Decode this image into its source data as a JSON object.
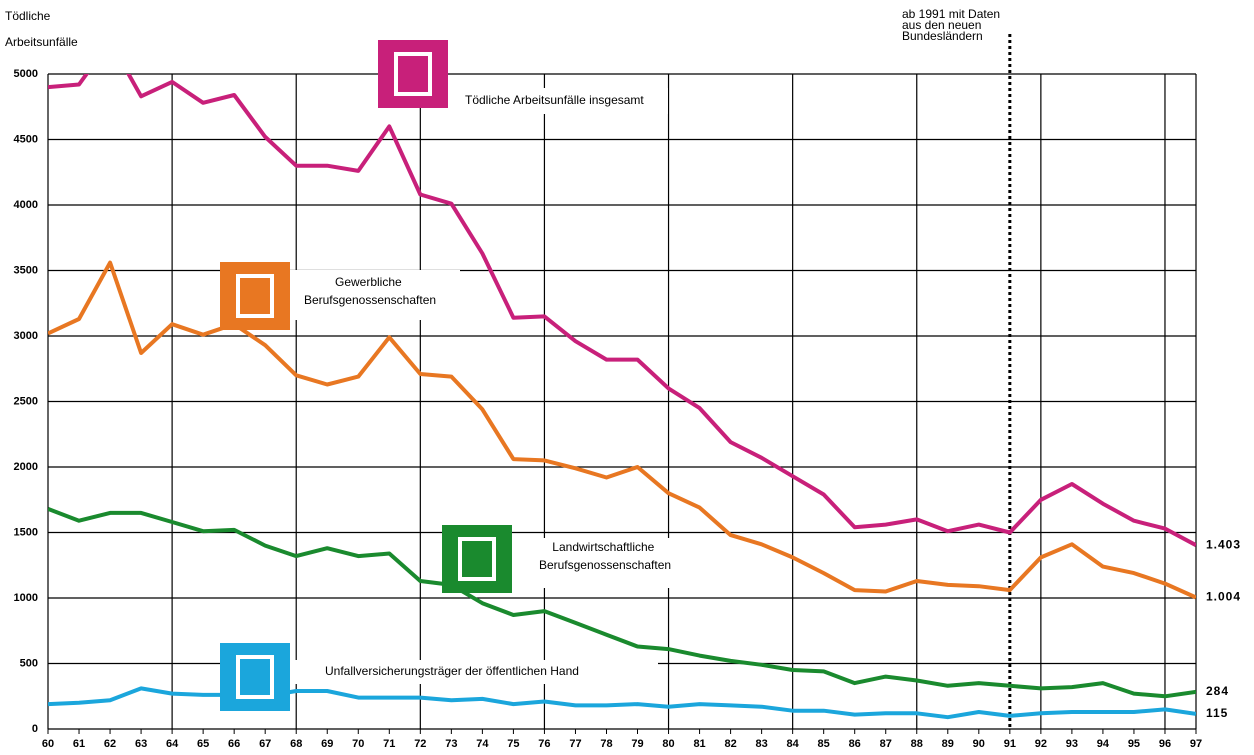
{
  "chart_data": {
    "type": "line",
    "title": "Tödliche Arbeitsunfälle",
    "categories": [
      "60",
      "61",
      "62",
      "63",
      "64",
      "65",
      "66",
      "67",
      "68",
      "69",
      "70",
      "71",
      "72",
      "73",
      "74",
      "75",
      "76",
      "77",
      "78",
      "79",
      "80",
      "81",
      "82",
      "83",
      "84",
      "85",
      "86",
      "87",
      "88",
      "89",
      "90",
      "91",
      "92",
      "93",
      "94",
      "95",
      "96",
      "97"
    ],
    "series": [
      {
        "name": "Tödliche Arbeitsunfälle insgesamt",
        "color": "#c8207a",
        "values": [
          4900,
          4920,
          5250,
          4830,
          4940,
          4780,
          4840,
          4520,
          4300,
          4300,
          4260,
          4600,
          4080,
          4010,
          3630,
          3140,
          3150,
          2960,
          2820,
          2820,
          2600,
          2450,
          2190,
          2070,
          1930,
          1790,
          1540,
          1560,
          1600,
          1510,
          1560,
          1500,
          1750,
          1870,
          1720,
          1590,
          1530,
          1403
        ],
        "value_labels": [
          null,
          null,
          null,
          null,
          null,
          null,
          null,
          null,
          null,
          null,
          null,
          null,
          null,
          null,
          null,
          null,
          null,
          null,
          null,
          null,
          null,
          null,
          null,
          null,
          null,
          null,
          null,
          null,
          null,
          null,
          null,
          null,
          null,
          null,
          null,
          null,
          null,
          "1.403"
        ]
      },
      {
        "name": "Gewerbliche Berufsgenossenschaften",
        "color": "#e87722",
        "values": [
          3020,
          3130,
          3560,
          2870,
          3090,
          3010,
          3090,
          2930,
          2700,
          2630,
          2690,
          2990,
          2710,
          2690,
          2440,
          2060,
          2050,
          1990,
          1920,
          2000,
          1800,
          1690,
          1480,
          1410,
          1310,
          1190,
          1060,
          1050,
          1130,
          1100,
          1090,
          1060,
          1310,
          1410,
          1240,
          1190,
          1110,
          1004
        ],
        "value_labels": [
          null,
          null,
          null,
          null,
          null,
          null,
          null,
          null,
          null,
          null,
          null,
          null,
          null,
          null,
          null,
          null,
          null,
          null,
          null,
          null,
          null,
          null,
          null,
          null,
          null,
          null,
          null,
          null,
          null,
          null,
          null,
          null,
          null,
          null,
          null,
          null,
          null,
          "1.004"
        ]
      },
      {
        "name": "Landwirtschaftliche Berufsgenossenschaften",
        "color": "#1a8a2e",
        "values": [
          1680,
          1590,
          1650,
          1650,
          1580,
          1510,
          1520,
          1400,
          1320,
          1380,
          1320,
          1340,
          1130,
          1100,
          960,
          870,
          900,
          810,
          720,
          630,
          610,
          560,
          520,
          490,
          450,
          440,
          350,
          400,
          370,
          330,
          350,
          330,
          310,
          320,
          350,
          270,
          250,
          284
        ],
        "value_labels": [
          null,
          null,
          null,
          null,
          null,
          null,
          null,
          null,
          null,
          null,
          null,
          null,
          null,
          null,
          null,
          null,
          null,
          null,
          null,
          null,
          null,
          null,
          null,
          null,
          null,
          null,
          null,
          null,
          null,
          null,
          null,
          null,
          null,
          null,
          null,
          null,
          null,
          "284"
        ]
      },
      {
        "name": "Unfallversicherungsträger der öffentlichen Hand",
        "color": "#1ba6dc",
        "values": [
          190,
          200,
          220,
          310,
          270,
          260,
          260,
          250,
          290,
          290,
          240,
          240,
          240,
          220,
          230,
          190,
          210,
          180,
          180,
          190,
          170,
          190,
          180,
          170,
          140,
          140,
          110,
          120,
          120,
          90,
          130,
          100,
          120,
          130,
          130,
          130,
          150,
          115
        ],
        "value_labels": [
          null,
          null,
          null,
          null,
          null,
          null,
          null,
          null,
          null,
          null,
          null,
          null,
          null,
          null,
          null,
          null,
          null,
          null,
          null,
          null,
          null,
          null,
          null,
          null,
          null,
          null,
          null,
          null,
          null,
          null,
          null,
          null,
          null,
          null,
          null,
          null,
          null,
          "115"
        ]
      }
    ],
    "ylim": [
      0,
      5000
    ],
    "yticks": [
      0,
      500,
      1000,
      1500,
      2000,
      2500,
      3000,
      3500,
      4000,
      4500,
      5000
    ],
    "grid": true,
    "annotation": {
      "lines": [
        "ab 1991 mit Daten",
        "aus den neuen",
        "Bundesländern"
      ],
      "at": "91"
    }
  }
}
